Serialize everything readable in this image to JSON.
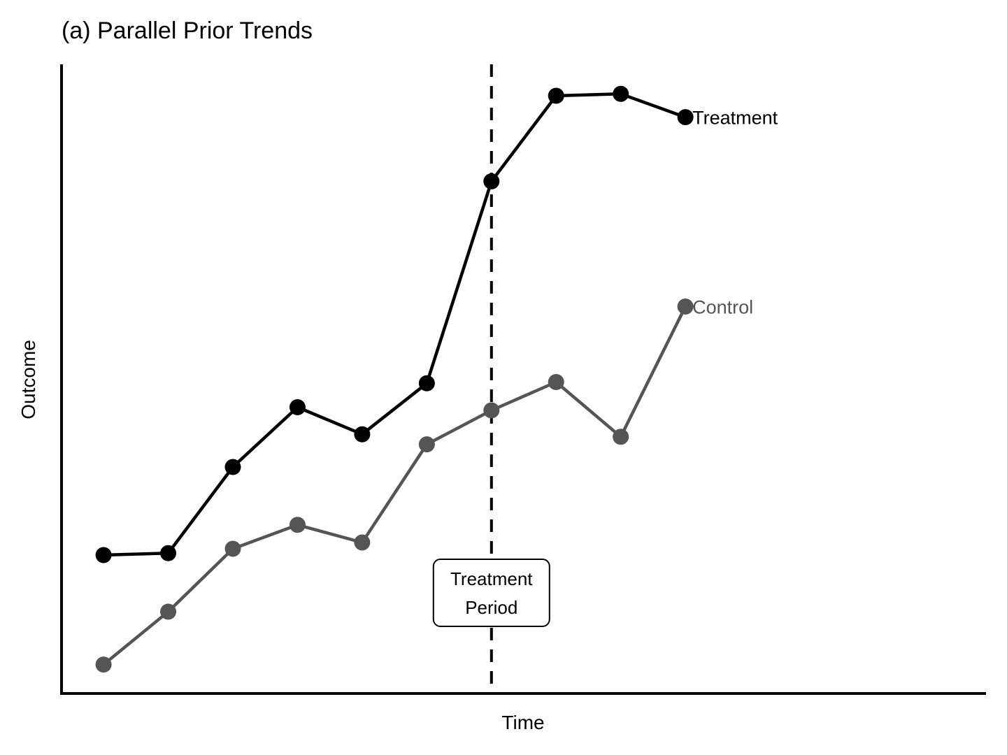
{
  "chart_data": {
    "type": "line",
    "title": "(a) Parallel Prior Trends",
    "xlabel": "Time",
    "ylabel": "Outcome",
    "x": [
      1,
      2,
      3,
      4,
      5,
      6,
      7,
      8,
      9,
      10
    ],
    "xlim": [
      0.35,
      14.65
    ],
    "ylim": [
      0,
      100
    ],
    "grid": false,
    "legend": "none",
    "series": [
      {
        "name": "Treatment",
        "color": "#000000",
        "values": [
          22,
          22.3,
          36,
          45.5,
          41.2,
          49.3,
          81.4,
          95,
          95.3,
          91.6
        ]
      },
      {
        "name": "Control",
        "color": "#555555",
        "values": [
          4.6,
          13,
          23,
          26.8,
          24,
          39.6,
          45,
          49.5,
          40.8,
          61.5
        ]
      }
    ],
    "annotations": [
      {
        "type": "vline",
        "x": 7,
        "style": "dashed",
        "color": "#000000"
      },
      {
        "type": "label-box",
        "x": 7,
        "y": 16,
        "text": [
          "Treatment",
          "Period"
        ]
      }
    ]
  }
}
